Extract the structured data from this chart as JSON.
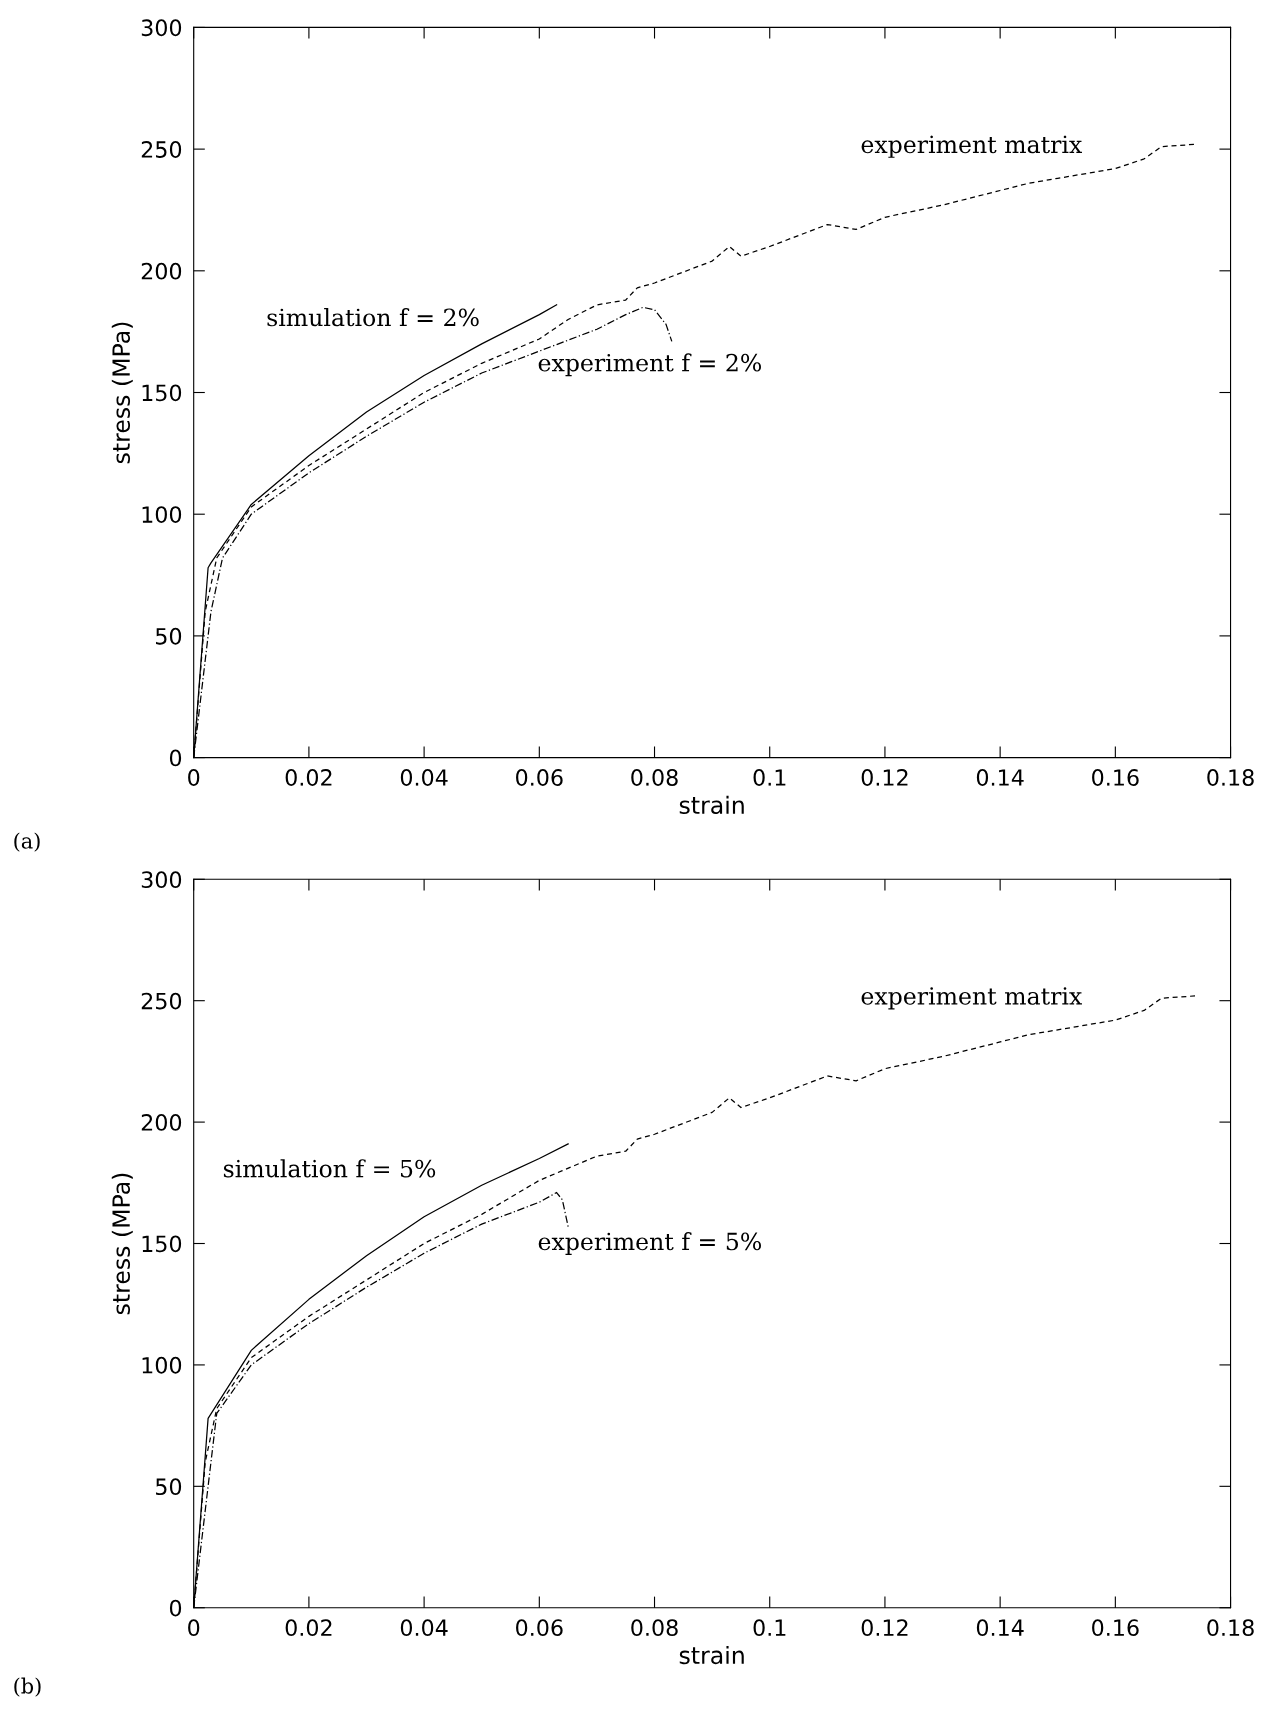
{
  "chart_data": [
    {
      "type": "line",
      "xlabel": "strain",
      "ylabel": "stress (MPa)",
      "xlim": [
        0,
        0.18
      ],
      "ylim": [
        0,
        300
      ],
      "xticks": [
        0,
        0.02,
        0.04,
        0.06,
        0.08,
        0.1,
        0.12,
        0.14,
        0.16,
        0.18
      ],
      "yticks": [
        0,
        50,
        100,
        150,
        200,
        250,
        300
      ],
      "grid": false,
      "series": [
        {
          "color": "#000000",
          "line_style": "solid",
          "x": [
            0,
            0.0025,
            0.003,
            0.01,
            0.02,
            0.03,
            0.04,
            0.05,
            0.06,
            0.063
          ],
          "values": [
            0,
            78,
            80,
            104,
            124,
            142,
            157,
            170,
            182,
            186
          ]
        },
        {
          "color": "#000000",
          "line_style": "dashed",
          "x": [
            0,
            0.002,
            0.004,
            0.01,
            0.02,
            0.03,
            0.04,
            0.05,
            0.06,
            0.065,
            0.07,
            0.075,
            0.077,
            0.08,
            0.09,
            0.093,
            0.095,
            0.1,
            0.11,
            0.115,
            0.12,
            0.13,
            0.14,
            0.145,
            0.15,
            0.16,
            0.165,
            0.168,
            0.174
          ],
          "values": [
            0,
            60,
            82,
            103,
            120,
            135,
            150,
            162,
            172,
            180,
            186,
            188,
            193,
            195,
            204,
            210,
            206,
            210,
            219,
            217,
            222,
            227,
            233,
            236,
            238,
            242,
            246,
            251,
            252
          ]
        },
        {
          "color": "#000000",
          "line_style": "dashdot",
          "x": [
            0,
            0.003,
            0.005,
            0.01,
            0.02,
            0.03,
            0.04,
            0.05,
            0.06,
            0.07,
            0.075,
            0.078,
            0.08,
            0.082,
            0.083
          ],
          "values": [
            0,
            60,
            82,
            100,
            117,
            132,
            146,
            158,
            167,
            176,
            182,
            185,
            184,
            178,
            171
          ]
        }
      ],
      "annotations": [
        "experiment matrix",
        "simulation f = 2%",
        "experiment f = 2%",
        "(a)"
      ]
    },
    {
      "type": "line",
      "xlabel": "strain",
      "ylabel": "stress (MPa)",
      "xlim": [
        0,
        0.18
      ],
      "ylim": [
        0,
        300
      ],
      "xticks": [
        0,
        0.02,
        0.04,
        0.06,
        0.08,
        0.1,
        0.12,
        0.14,
        0.16,
        0.18
      ],
      "yticks": [
        0,
        50,
        100,
        150,
        200,
        250,
        300
      ],
      "grid": false,
      "series": [
        {
          "color": "#000000",
          "line_style": "solid",
          "x": [
            0,
            0.0025,
            0.01,
            0.02,
            0.03,
            0.04,
            0.05,
            0.06,
            0.065
          ],
          "values": [
            0,
            78,
            106,
            127,
            145,
            161,
            174,
            185,
            191
          ]
        },
        {
          "color": "#000000",
          "line_style": "dashed",
          "x": [
            0,
            0.002,
            0.004,
            0.01,
            0.02,
            0.03,
            0.04,
            0.05,
            0.06,
            0.064,
            0.07,
            0.075,
            0.077,
            0.08,
            0.09,
            0.093,
            0.095,
            0.1,
            0.11,
            0.115,
            0.12,
            0.13,
            0.14,
            0.145,
            0.15,
            0.16,
            0.165,
            0.168,
            0.174
          ],
          "values": [
            0,
            60,
            82,
            103,
            120,
            135,
            150,
            162,
            176,
            180,
            186,
            188,
            193,
            195,
            204,
            210,
            206,
            210,
            219,
            217,
            222,
            227,
            233,
            236,
            238,
            242,
            246,
            251,
            252
          ]
        },
        {
          "color": "#000000",
          "line_style": "dashdot",
          "x": [
            0,
            0.004,
            0.01,
            0.02,
            0.03,
            0.04,
            0.05,
            0.06,
            0.063,
            0.064,
            0.065
          ],
          "values": [
            0,
            80,
            100,
            117,
            132,
            146,
            158,
            167,
            171,
            168,
            157
          ]
        }
      ],
      "annotations": [
        "experiment matrix",
        "simulation f = 5%",
        "experiment f = 5%",
        "(b)"
      ]
    }
  ]
}
